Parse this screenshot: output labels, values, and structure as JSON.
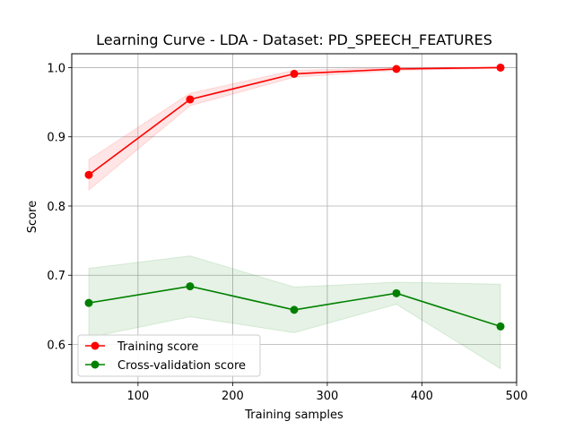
{
  "chart_data": {
    "type": "line",
    "title": "Learning Curve - LDA - Dataset: PD_SPEECH_FEATURES",
    "xlabel": "Training samples",
    "ylabel": "Score",
    "xlim": [
      30,
      500
    ],
    "ylim": [
      0.545,
      1.02
    ],
    "xticks": [
      100,
      200,
      300,
      400,
      500
    ],
    "yticks": [
      0.6,
      0.7,
      0.8,
      0.9,
      1.0
    ],
    "grid": true,
    "legend_position": "lower-left",
    "x": [
      48,
      155,
      265,
      373,
      483
    ],
    "series": [
      {
        "name": "Training score",
        "color": "#ff0000",
        "values": [
          0.845,
          0.954,
          0.991,
          0.998,
          1.0
        ],
        "band_lower": [
          0.823,
          0.945,
          0.986,
          0.996,
          0.999
        ],
        "band_upper": [
          0.867,
          0.963,
          0.996,
          1.0,
          1.001
        ]
      },
      {
        "name": "Cross-validation score",
        "color": "#008000",
        "values": [
          0.66,
          0.684,
          0.65,
          0.674,
          0.626
        ],
        "band_lower": [
          0.61,
          0.64,
          0.617,
          0.658,
          0.565
        ],
        "band_upper": [
          0.71,
          0.728,
          0.683,
          0.69,
          0.687
        ]
      }
    ]
  }
}
